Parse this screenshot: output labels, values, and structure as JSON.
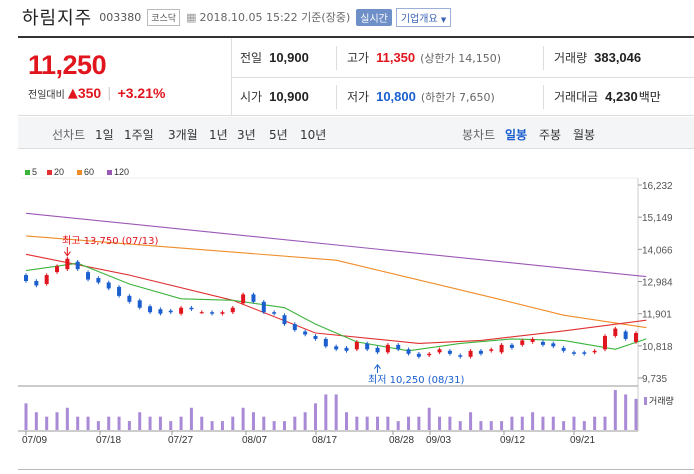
{
  "header": {
    "name": "하림지주",
    "code": "003380",
    "market": "코스닥",
    "datetime": "2018.10.05 15:22 기준(장중)",
    "realtime": "실시간",
    "company_info": "기업개요"
  },
  "price": {
    "current": "11,250",
    "change_label": "전일대비",
    "change_arrow": "▲",
    "change_value": "350",
    "change_pct": "+3.21%"
  },
  "stats": {
    "prev_label": "전일",
    "prev": "10,900",
    "high_label": "고가",
    "high": "11,350",
    "high_sub": "(상한가 14,150)",
    "volume_label": "거래량",
    "volume": "383,046",
    "open_label": "시가",
    "open": "10,900",
    "low_label": "저가",
    "low": "10,800",
    "low_sub": "(하한가 7,650)",
    "amount_label": "거래대금",
    "amount": "4,230",
    "amount_unit": "백만"
  },
  "period": {
    "line_label": "선차트",
    "line_options": [
      "1일",
      "1주일",
      "3개월",
      "1년",
      "3년",
      "5년",
      "10년"
    ],
    "candle_label": "봉차트",
    "candle_options": [
      "일봉",
      "주봉",
      "월봉"
    ],
    "selected": "일봉"
  },
  "colors": {
    "up": "#e0151e",
    "down": "#1b5fcf",
    "ma5": "#3cb43c",
    "ma20": "#e03030",
    "ma60": "#f08c28",
    "ma120": "#9b59b6",
    "volume": "#a98ad6"
  },
  "chart_data": {
    "type": "candlestick",
    "legend": [
      "5",
      "20",
      "60",
      "120"
    ],
    "y_ticks": [
      "16,232",
      "15,149",
      "14,066",
      "12,984",
      "11,901",
      "10,818",
      "9,735"
    ],
    "ylim": [
      9735,
      16232
    ],
    "x_ticks": [
      "07/09",
      "07/18",
      "07/27",
      "08/07",
      "08/17",
      "08/28",
      "09/03",
      "09/12",
      "09/21"
    ],
    "volume_label": "거래량",
    "annotations": {
      "high": "최고 13,750 (07/13)",
      "low": "최저 10,250 (08/31)"
    },
    "ma120": [
      [
        0,
        15280
      ],
      [
        60,
        13150
      ]
    ],
    "ma60": [
      [
        0,
        14520
      ],
      [
        30,
        13700
      ],
      [
        45,
        12450
      ],
      [
        52,
        11850
      ],
      [
        60,
        11430
      ]
    ],
    "ma20": [
      [
        0,
        13900
      ],
      [
        10,
        13200
      ],
      [
        20,
        12350
      ],
      [
        28,
        11250
      ],
      [
        38,
        10900
      ],
      [
        44,
        11000
      ],
      [
        52,
        11320
      ],
      [
        60,
        11680
      ]
    ],
    "ma5": [
      [
        0,
        13350
      ],
      [
        5,
        13600
      ],
      [
        10,
        12900
      ],
      [
        15,
        12400
      ],
      [
        20,
        12350
      ],
      [
        25,
        12100
      ],
      [
        28,
        11550
      ],
      [
        32,
        10950
      ],
      [
        37,
        10650
      ],
      [
        42,
        10900
      ],
      [
        47,
        11050
      ],
      [
        52,
        11000
      ],
      [
        57,
        10700
      ],
      [
        60,
        11050
      ]
    ],
    "candles": [
      [
        13200,
        13000
      ],
      [
        13000,
        12850
      ],
      [
        12900,
        13200
      ],
      [
        13300,
        13500
      ],
      [
        13400,
        13750
      ],
      [
        13650,
        13400
      ],
      [
        13300,
        13050
      ],
      [
        13100,
        12950
      ],
      [
        12950,
        12750
      ],
      [
        12800,
        12500
      ],
      [
        12500,
        12300
      ],
      [
        12350,
        12100
      ],
      [
        12150,
        11950
      ],
      [
        12050,
        11900
      ],
      [
        12000,
        11950
      ],
      [
        11900,
        12100
      ],
      [
        12100,
        12050
      ],
      [
        11950,
        11950
      ],
      [
        11950,
        11900
      ],
      [
        11900,
        11950
      ],
      [
        11950,
        12100
      ],
      [
        12250,
        12550
      ],
      [
        12550,
        12300
      ],
      [
        12300,
        11950
      ],
      [
        11950,
        11900
      ],
      [
        11850,
        11550
      ],
      [
        11550,
        11350
      ],
      [
        11300,
        11200
      ],
      [
        11150,
        11050
      ],
      [
        11050,
        10800
      ],
      [
        10800,
        10700
      ],
      [
        10750,
        10650
      ],
      [
        10700,
        10950
      ],
      [
        10900,
        10700
      ],
      [
        10750,
        10600
      ],
      [
        10600,
        10850
      ],
      [
        10850,
        10700
      ],
      [
        10700,
        10550
      ],
      [
        10550,
        10450
      ],
      [
        10500,
        10550
      ],
      [
        10600,
        10700
      ],
      [
        10650,
        10550
      ],
      [
        10500,
        10450
      ],
      [
        10450,
        10650
      ],
      [
        10650,
        10550
      ],
      [
        10650,
        10700
      ],
      [
        10600,
        10850
      ],
      [
        10850,
        10750
      ],
      [
        10850,
        11000
      ],
      [
        10950,
        11050
      ],
      [
        10950,
        10850
      ],
      [
        10900,
        10800
      ],
      [
        10750,
        10650
      ],
      [
        10600,
        10550
      ],
      [
        10600,
        10550
      ],
      [
        10600,
        10650
      ],
      [
        10700,
        11150
      ],
      [
        11150,
        11400
      ],
      [
        11300,
        11050
      ],
      [
        10950,
        11250
      ]
    ],
    "volumes": [
      6,
      4,
      3,
      4,
      5,
      3,
      3,
      2,
      3,
      3,
      2,
      4,
      3,
      3,
      2,
      3,
      5,
      3,
      2,
      2,
      3,
      5,
      4,
      3,
      2,
      2,
      3,
      4,
      6,
      8,
      8,
      4,
      3,
      3,
      3,
      3,
      2,
      3,
      3,
      5,
      3,
      3,
      2,
      4,
      2,
      2,
      2,
      3,
      3,
      4,
      3,
      3,
      2,
      3,
      2,
      3,
      3,
      9,
      8,
      7
    ]
  }
}
